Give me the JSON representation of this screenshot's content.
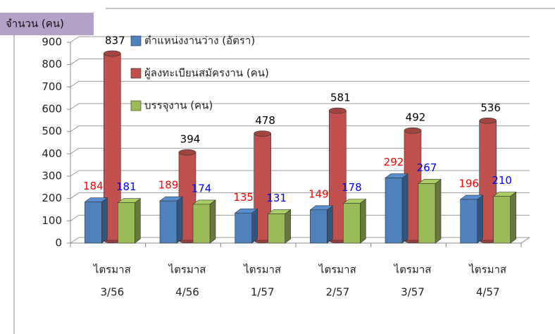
{
  "chart_data": {
    "type": "bar3d",
    "y_label": "จำนวน (คน)",
    "categories": [
      [
        "ไตรมาส",
        "3/56"
      ],
      [
        "ไตรมาส",
        "4/56"
      ],
      [
        "ไตรมาส",
        "1/57"
      ],
      [
        "ไตรมาส",
        "2/57"
      ],
      [
        "ไตรมาส",
        "3/57"
      ],
      [
        "ไตรมาส",
        "4/57"
      ]
    ],
    "series": [
      {
        "name": "ตำแหน่งงานว่าง (อัตรา)",
        "color": "#4f81bd",
        "label_color": "#ff0000",
        "shape": "box",
        "values": [
          184,
          189,
          135,
          149,
          292,
          196
        ]
      },
      {
        "name": "ผู้ลงทะเบียนสมัครงาน (คน)",
        "color": "#c0504d",
        "label_color": "#000000",
        "shape": "cylinder",
        "values": [
          837,
          394,
          478,
          581,
          492,
          536
        ]
      },
      {
        "name": "บรรจุงาน (คน)",
        "color": "#9bbb59",
        "label_color": "#0000ff",
        "shape": "box",
        "values": [
          181,
          174,
          131,
          178,
          267,
          210
        ]
      }
    ],
    "ylim": [
      0,
      900
    ],
    "yticks": [
      0,
      100,
      200,
      300,
      400,
      500,
      600,
      700,
      800,
      900
    ],
    "grid": true
  }
}
